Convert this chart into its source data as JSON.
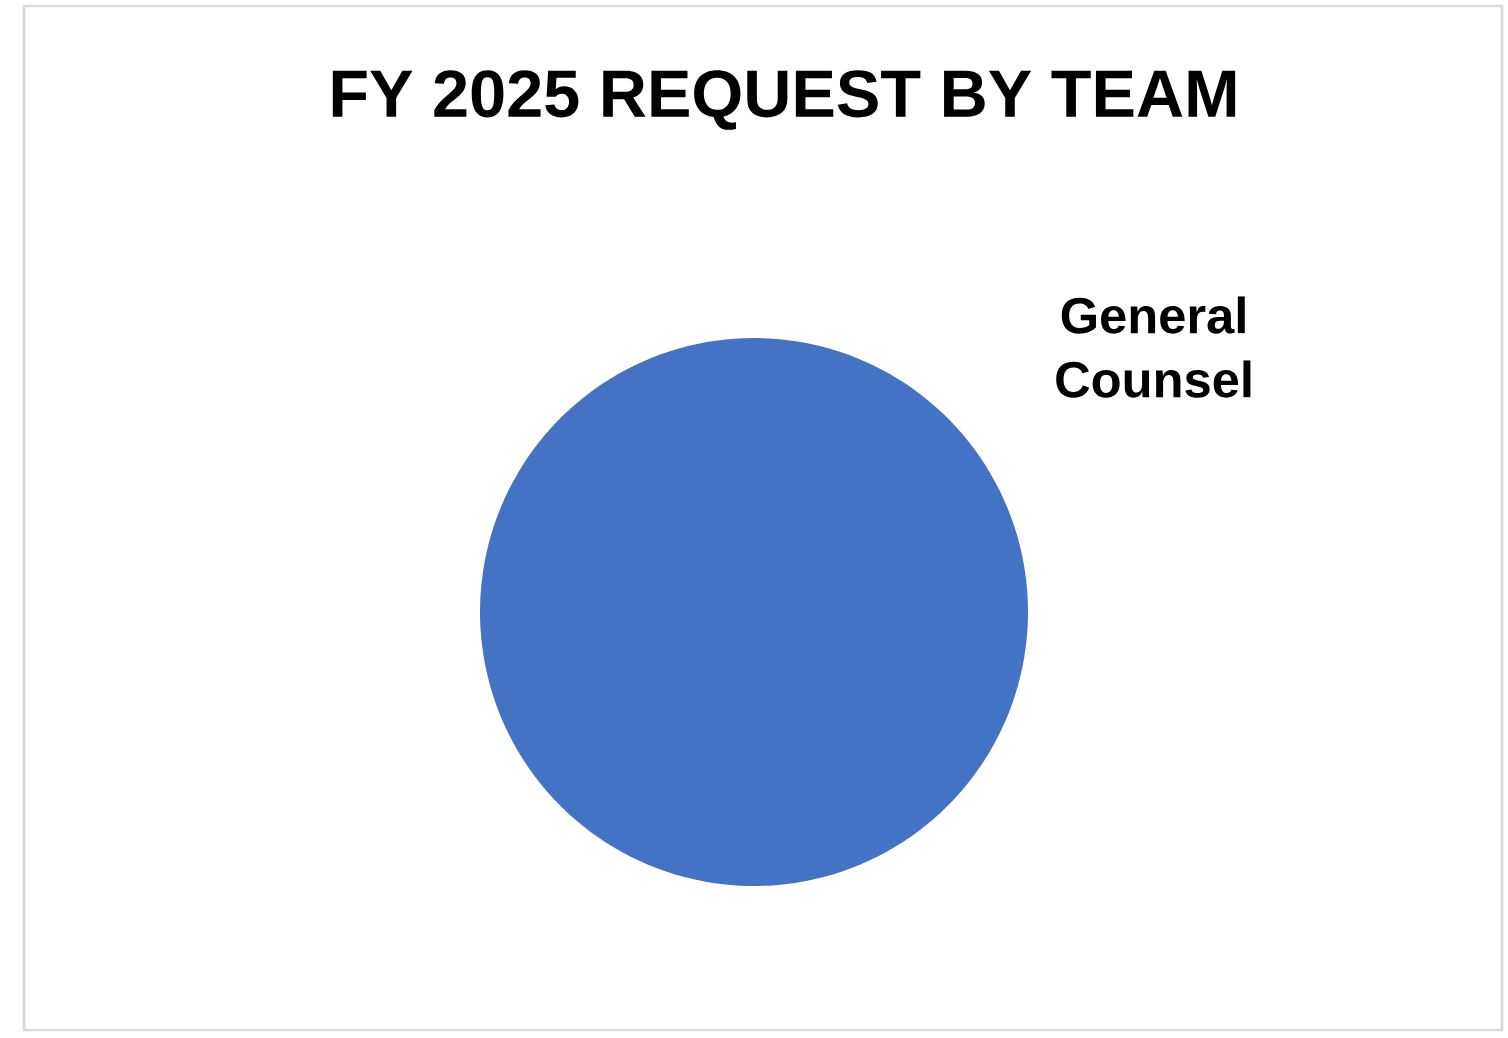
{
  "chart_data": {
    "type": "pie",
    "title": "FY 2025 REQUEST BY TEAM",
    "categories": [
      "General Counsel"
    ],
    "values": [
      100
    ],
    "colors": [
      "#4472c4"
    ]
  }
}
